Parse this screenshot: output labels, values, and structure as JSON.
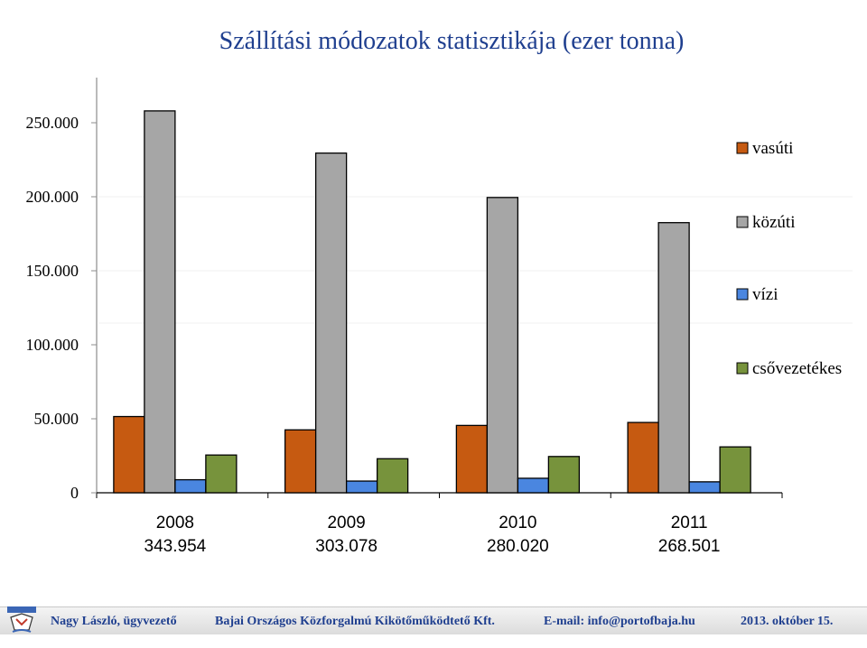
{
  "chart_data": {
    "type": "bar",
    "title": "Szállítási módozatok statisztikája (ezer tonna)",
    "xlabel": "",
    "ylabel": "",
    "ylim": [
      0,
      250000
    ],
    "yticks": [
      0,
      50000,
      100000,
      150000,
      200000,
      250000
    ],
    "ytick_labels": [
      "0",
      "50.000",
      "100.000",
      "150.000",
      "200.000",
      "250.000"
    ],
    "categories": [
      "2008",
      "2009",
      "2010",
      "2011"
    ],
    "category_totals": [
      "343.954",
      "303.078",
      "280.020",
      "268.501"
    ],
    "series": [
      {
        "name": "vasúti",
        "color": "#c65a11",
        "values": [
          51500,
          42500,
          45500,
          47500
        ]
      },
      {
        "name": "közúti",
        "color": "#a6a6a6",
        "values": [
          258000,
          229500,
          199500,
          182500
        ]
      },
      {
        "name": "vízi",
        "color": "#4a86e0",
        "values": [
          8800,
          7900,
          9800,
          7400
        ]
      },
      {
        "name": "csővezetékes",
        "color": "#77933c",
        "values": [
          25500,
          23000,
          24500,
          31000
        ]
      }
    ],
    "grid": false,
    "legend_position": "right"
  },
  "footer": {
    "author": "Nagy László, ügyvezető",
    "company": "Bajai Országos Közforgalmú Kikötőműködtető Kft.",
    "email": "E-mail: info@portofbaja.hu",
    "date": "2013. október 15."
  }
}
